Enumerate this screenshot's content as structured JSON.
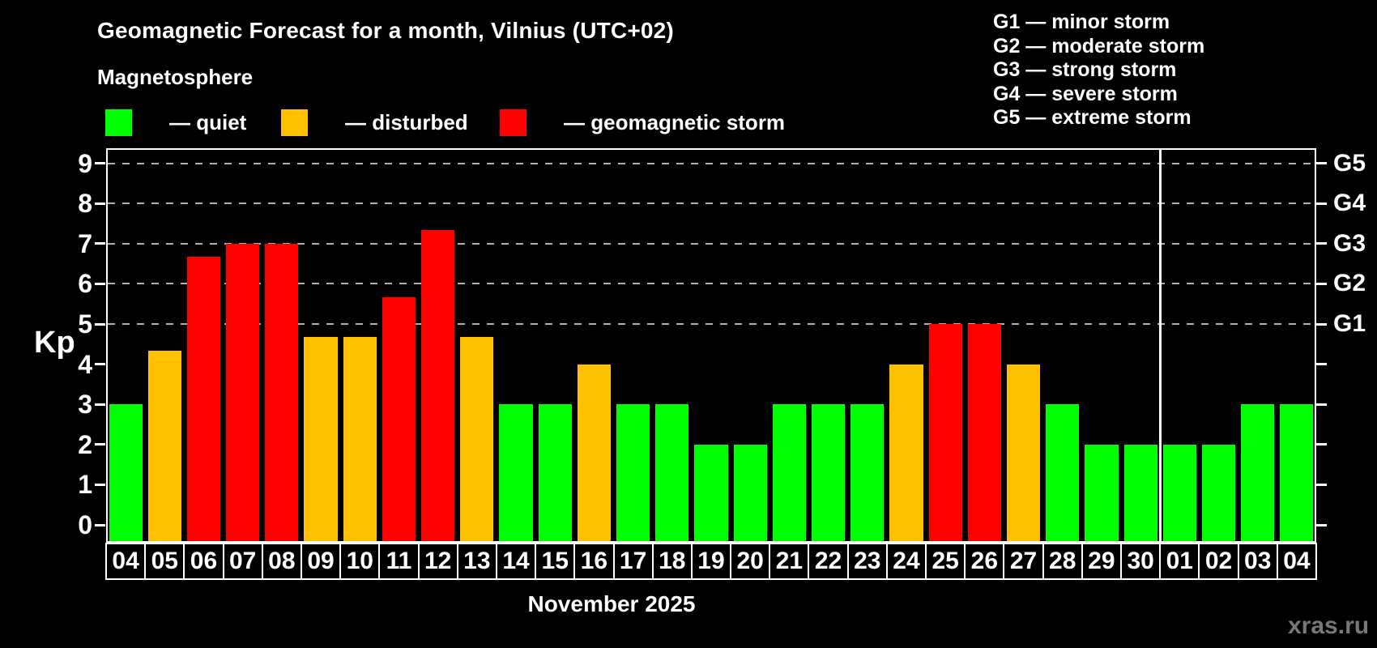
{
  "title": "Geomagnetic Forecast for a month, Vilnius (UTC+02)",
  "subtitle": "Magnetosphere",
  "legend": [
    {
      "key": "quiet",
      "label": "— quiet",
      "color": "#00ff00"
    },
    {
      "key": "disturbed",
      "label": "— disturbed",
      "color": "#ffc000"
    },
    {
      "key": "storm",
      "label": "— geomagnetic storm",
      "color": "#ff0000"
    }
  ],
  "g_scale_legend": [
    "G1 — minor storm",
    "G2 — moderate storm",
    "G3 — strong storm",
    "G4 — severe storm",
    "G5 — extreme storm"
  ],
  "y_axis": {
    "label": "Kp",
    "ticks": [
      0,
      1,
      2,
      3,
      4,
      5,
      6,
      7,
      8,
      9
    ]
  },
  "right_axis": {
    "labels": [
      {
        "text": "G1",
        "kp": 5
      },
      {
        "text": "G2",
        "kp": 6
      },
      {
        "text": "G3",
        "kp": 7
      },
      {
        "text": "G4",
        "kp": 8
      },
      {
        "text": "G5",
        "kp": 9
      }
    ]
  },
  "x_axis_label": "November 2025",
  "watermark": "xras.ru",
  "chart_data": {
    "type": "bar",
    "title": "Geomagnetic Forecast for a month, Vilnius (UTC+02)",
    "xlabel": "November 2025",
    "ylabel": "Kp",
    "ylim": [
      0,
      9
    ],
    "grid": "dashed horizontal at Kp 5-9",
    "gridlines_kp": [
      5,
      6,
      7,
      8,
      9
    ],
    "categories": [
      "04",
      "05",
      "06",
      "07",
      "08",
      "09",
      "10",
      "11",
      "12",
      "13",
      "14",
      "15",
      "16",
      "17",
      "18",
      "19",
      "20",
      "21",
      "22",
      "23",
      "24",
      "25",
      "26",
      "27",
      "28",
      "29",
      "30",
      "01",
      "02",
      "03",
      "04"
    ],
    "values": [
      3,
      4.33,
      6.67,
      7,
      7,
      4.67,
      4.67,
      5.67,
      7.33,
      4.67,
      3,
      3,
      4,
      3,
      3,
      2,
      2,
      3,
      3,
      3,
      4,
      5,
      5,
      4,
      3,
      2,
      2,
      2,
      2,
      3,
      3
    ],
    "statuses": [
      "quiet",
      "disturbed",
      "storm",
      "storm",
      "storm",
      "disturbed",
      "disturbed",
      "storm",
      "storm",
      "disturbed",
      "quiet",
      "quiet",
      "disturbed",
      "quiet",
      "quiet",
      "quiet",
      "quiet",
      "quiet",
      "quiet",
      "quiet",
      "disturbed",
      "storm",
      "storm",
      "disturbed",
      "quiet",
      "quiet",
      "quiet",
      "quiet",
      "quiet",
      "quiet",
      "quiet"
    ],
    "colors": {
      "quiet": "#00ff00",
      "disturbed": "#ffc000",
      "storm": "#ff0000"
    },
    "month_separator_after_index": 26,
    "g_levels": {
      "G1": 5,
      "G2": 6,
      "G3": 7,
      "G4": 8,
      "G5": 9
    }
  }
}
